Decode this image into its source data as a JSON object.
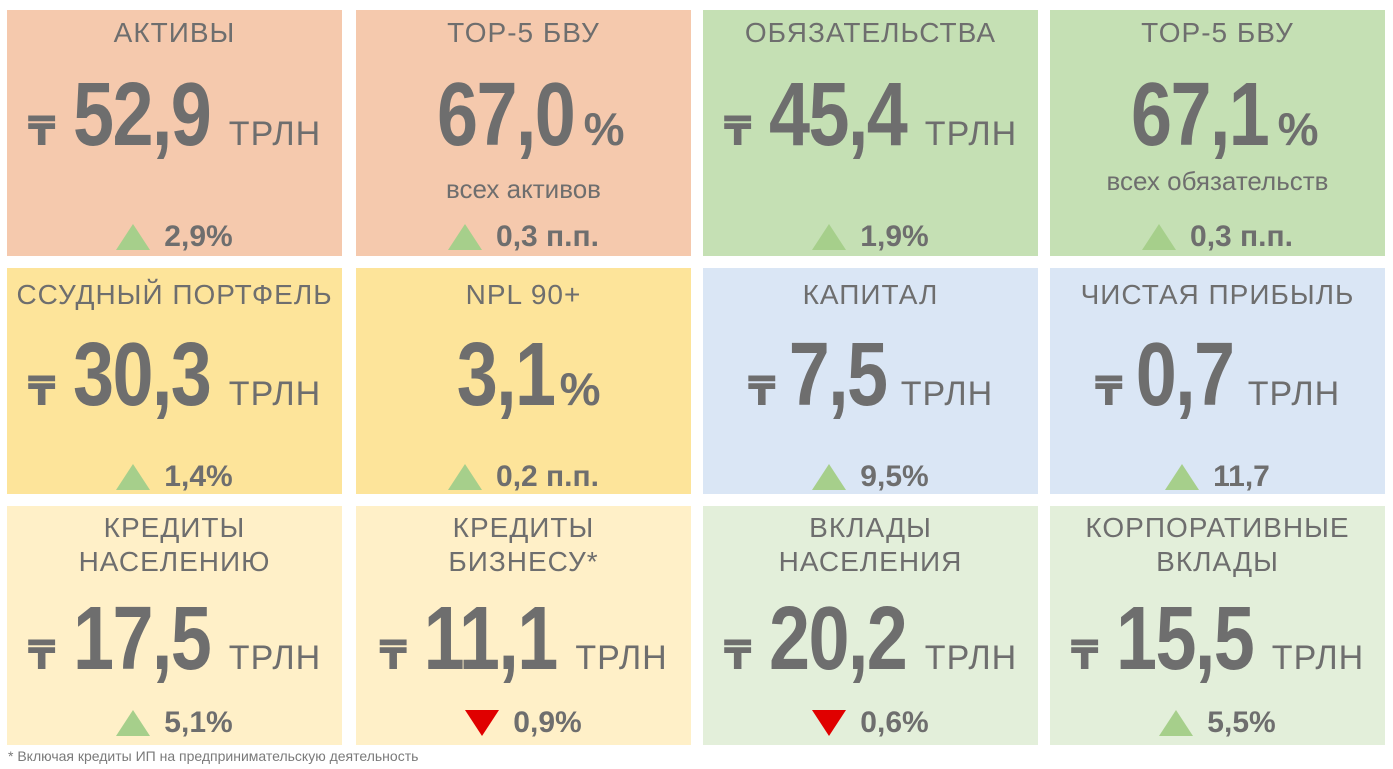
{
  "colors": {
    "orange": "#f5c9ad",
    "green": "#c5e0b4",
    "yellow_strong": "#fde49a",
    "blue": "#dae6f5",
    "yellow_light": "#fff0c8",
    "green_light": "#e3efda",
    "text": "#6e6e6e",
    "up_triangle": "#a6cf8b",
    "down_triangle": "#e00000"
  },
  "currency_symbol": "₸",
  "cards": {
    "assets": {
      "title": "АКТИВЫ",
      "value": "52,9",
      "unit": "ТРЛН",
      "change": "2,9%",
      "direction": "up-triangle-icon"
    },
    "top5_assets": {
      "title": "TOP-5 БВУ",
      "value": "67,0",
      "pct": "%",
      "sub": "всех активов",
      "change": "0,3 п.п.",
      "direction": "up-triangle-icon"
    },
    "liabilities": {
      "title": "ОБЯЗАТЕЛЬСТВА",
      "value": "45,4",
      "unit": "ТРЛН",
      "change": "1,9%",
      "direction": "up-triangle-icon"
    },
    "top5_liabilities": {
      "title": "TOP-5 БВУ",
      "value": "67,1",
      "pct": "%",
      "sub": "всех обязательств",
      "change": "0,3 п.п.",
      "direction": "up-triangle-icon"
    },
    "loan_portfolio": {
      "title": "ССУДНЫЙ ПОРТФЕЛЬ",
      "value": "30,3",
      "unit": "ТРЛН",
      "change": "1,4%",
      "direction": "up-triangle-icon"
    },
    "npl": {
      "title": "NPL 90+",
      "value": "3,1",
      "pct": "%",
      "change": "0,2 п.п.",
      "direction": "up-triangle-icon"
    },
    "capital": {
      "title": "КАПИТАЛ",
      "value": "7,5",
      "unit": "ТРЛН",
      "change": "9,5%",
      "direction": "up-triangle-icon"
    },
    "net_profit": {
      "title": "ЧИСТАЯ ПРИБЫЛЬ",
      "value": "0,7",
      "unit": "ТРЛН",
      "change": "11,7",
      "direction": "up-triangle-icon"
    },
    "retail_loans": {
      "title_line1": "КРЕДИТЫ",
      "title_line2": "НАСЕЛЕНИЮ",
      "value": "17,5",
      "unit": "ТРЛН",
      "change": "5,1%",
      "direction": "up-triangle-icon"
    },
    "business_loans": {
      "title_line1": "КРЕДИТЫ",
      "title_line2": "БИЗНЕСУ*",
      "value": "11,1",
      "unit": "ТРЛН",
      "change": "0,9%",
      "direction": "down-triangle-icon"
    },
    "retail_deposits": {
      "title_line1": "ВКЛАДЫ",
      "title_line2": "НАСЕЛЕНИЯ",
      "value": "20,2",
      "unit": "ТРЛН",
      "change": "0,6%",
      "direction": "down-triangle-icon"
    },
    "corporate_deposits": {
      "title_line1": "КОРПОРАТИВНЫЕ",
      "title_line2": "ВКЛАДЫ",
      "value": "15,5",
      "unit": "ТРЛН",
      "change": "5,5%",
      "direction": "up-triangle-icon"
    }
  },
  "footnote": "* Включая кредиты ИП на предпринимательскую деятельность"
}
